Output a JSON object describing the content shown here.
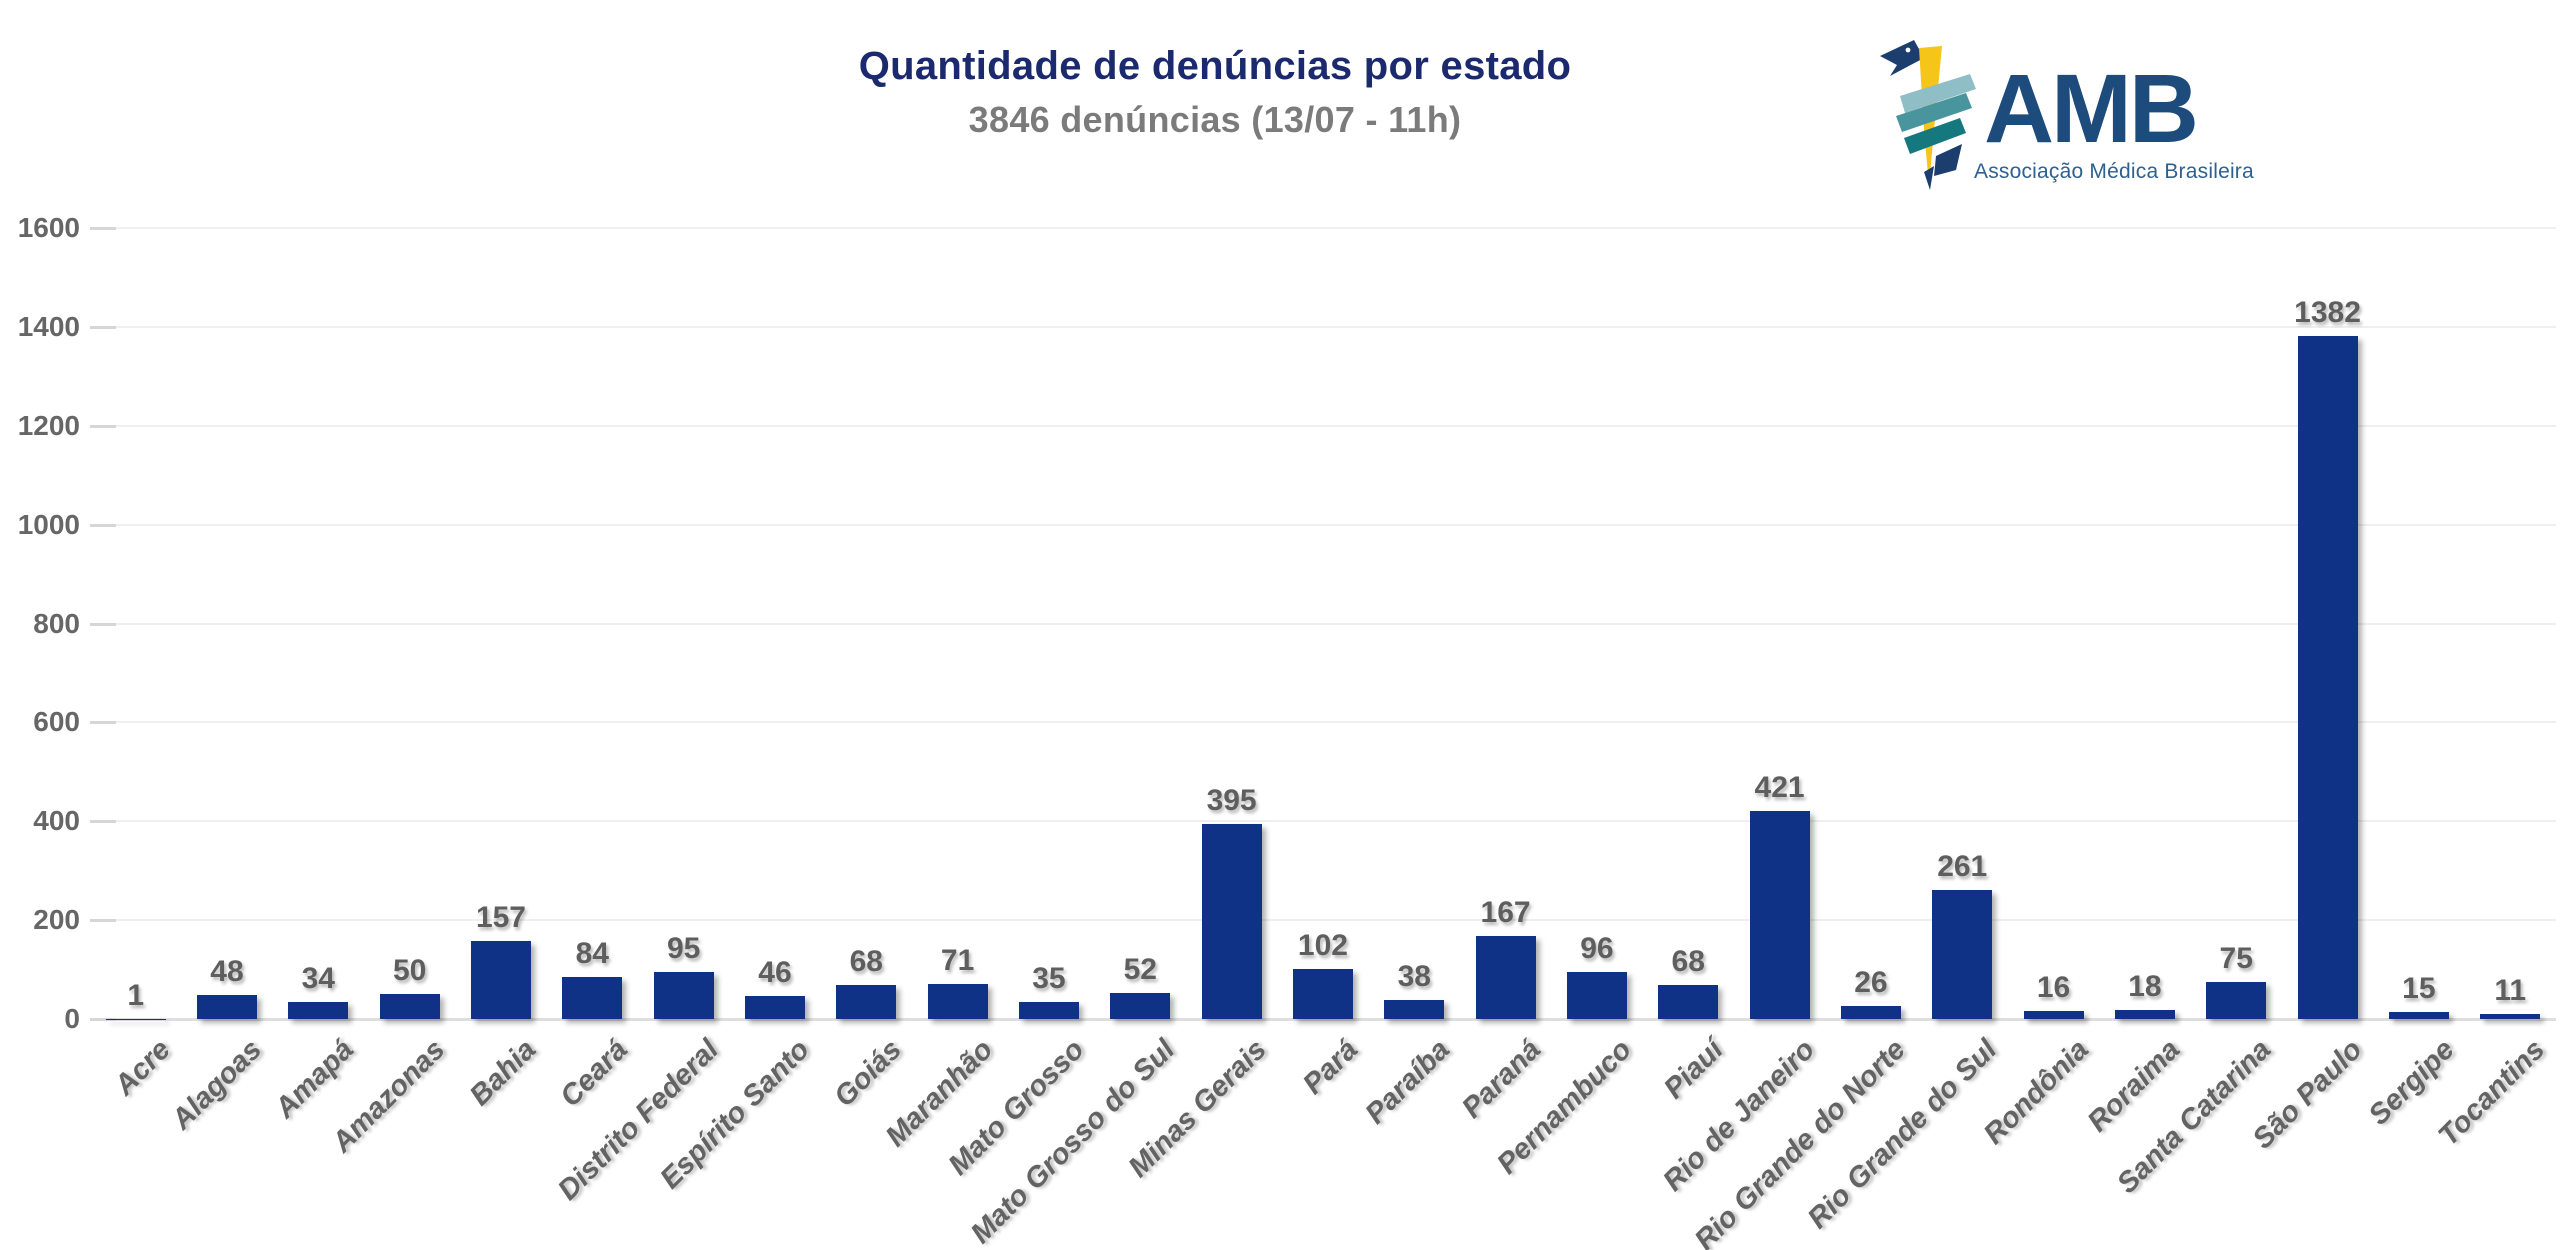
{
  "header": {
    "title": "Quantidade de denúncias por estado",
    "subtitle": "3846 denúncias (13/07 - 11h)"
  },
  "logo": {
    "text": "AMB",
    "subtext": "Associação Médica Brasileira"
  },
  "colors": {
    "bar": "#0f3287",
    "title": "#1b2a6e",
    "subtitle_gray": "#7b7b7b",
    "axis_label_gray": "#666666",
    "value_label_gray": "#5e5e5e",
    "gridline": "#efefef",
    "logo_navy": "#1d4b7c",
    "logo_blue": "#2e6191",
    "logo_yellow": "#f6c51a",
    "logo_teal_dark": "#15787f",
    "logo_teal_mid": "#49959e",
    "logo_teal_light": "#8fbec6",
    "logo_flag_navy": "#1c3e6e"
  },
  "chart_data": {
    "type": "bar",
    "title": "Quantidade de denúncias por estado",
    "subtitle": "3846 denúncias (13/07 - 11h)",
    "xlabel": "",
    "ylabel": "",
    "ylim": [
      0,
      1600
    ],
    "yticks": [
      0,
      200,
      400,
      600,
      800,
      1000,
      1200,
      1400,
      1600
    ],
    "grid": true,
    "legend": false,
    "bar_color": "#0f3287",
    "categories": [
      "Acre",
      "Alagoas",
      "Amapá",
      "Amazonas",
      "Bahia",
      "Ceará",
      "Distrito Federal",
      "Espírito Santo",
      "Goiás",
      "Maranhão",
      "Mato Grosso",
      "Mato Grosso do Sul",
      "Minas Gerais",
      "Pará",
      "Paraíba",
      "Paraná",
      "Pernambuco",
      "Piauí",
      "Rio de Janeiro",
      "Rio Grande do Norte",
      "Rio Grande do Sul",
      "Rondônia",
      "Roraima",
      "Santa Catarina",
      "São Paulo",
      "Sergipe",
      "Tocantins"
    ],
    "values": [
      1,
      48,
      34,
      50,
      157,
      84,
      95,
      46,
      68,
      71,
      35,
      52,
      395,
      102,
      38,
      167,
      96,
      68,
      421,
      26,
      261,
      16,
      18,
      75,
      1382,
      15,
      11
    ]
  }
}
